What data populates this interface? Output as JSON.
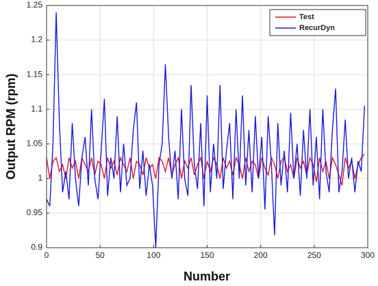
{
  "chart_data": {
    "type": "line",
    "xlabel": "Number",
    "ylabel": "Output RPM (rpm)",
    "x": [
      0,
      3,
      6,
      9,
      12,
      15,
      18,
      21,
      24,
      27,
      30,
      33,
      36,
      39,
      42,
      45,
      48,
      51,
      54,
      57,
      60,
      63,
      66,
      69,
      72,
      75,
      78,
      81,
      84,
      87,
      90,
      93,
      96,
      99,
      102,
      105,
      108,
      111,
      114,
      117,
      120,
      123,
      126,
      129,
      132,
      135,
      138,
      141,
      144,
      147,
      150,
      153,
      156,
      159,
      162,
      165,
      168,
      171,
      174,
      177,
      180,
      183,
      186,
      189,
      192,
      195,
      198,
      201,
      204,
      207,
      210,
      213,
      216,
      219,
      222,
      225,
      228,
      231,
      234,
      237,
      240,
      243,
      246,
      249,
      252,
      255,
      258,
      261,
      264,
      267,
      270,
      273,
      276,
      279,
      282,
      285,
      288,
      291,
      294,
      297
    ],
    "series": [
      {
        "name": "Test",
        "color": "#e8141c",
        "values": [
          1.03,
          1.0,
          1.025,
          1.03,
          1.01,
          1.02,
          1.0,
          1.03,
          1.015,
          1.025,
          1.0,
          1.03,
          1.02,
          1.01,
          1.03,
          1.005,
          1.025,
          1.02,
          1.0,
          1.03,
          1.015,
          1.025,
          1.005,
          1.03,
          1.02,
          1.01,
          1.03,
          1.0,
          1.025,
          1.02,
          1.005,
          1.03,
          1.015,
          1.02,
          1.0,
          1.03,
          1.025,
          1.01,
          1.03,
          1.005,
          1.02,
          1.03,
          1.0,
          1.025,
          1.015,
          1.03,
          1.005,
          1.02,
          1.03,
          1.0,
          1.025,
          1.01,
          1.03,
          1.02,
          1.0,
          1.03,
          1.015,
          1.025,
          1.005,
          1.03,
          1.02,
          1.0,
          1.03,
          1.01,
          1.025,
          1.02,
          1.0,
          1.03,
          1.015,
          1.005,
          1.03,
          1.02,
          1.0,
          1.025,
          1.03,
          1.01,
          1.02,
          1.0,
          1.03,
          1.015,
          1.025,
          1.005,
          1.03,
          1.02,
          0.995,
          1.03,
          1.01,
          1.025,
          1.0,
          1.03,
          1.02,
          1.005,
          0.99,
          1.03,
          1.015,
          1.025,
          1.0,
          1.02,
          1.03,
          1.035
        ]
      },
      {
        "name": "RecurDyn",
        "color": "#1a1adc",
        "values": [
          0.97,
          0.96,
          1.05,
          1.24,
          1.08,
          0.98,
          1.01,
          0.97,
          1.08,
          1.0,
          0.96,
          1.03,
          1.06,
          0.99,
          1.1,
          1.0,
          0.97,
          1.04,
          1.115,
          0.975,
          1.03,
          1.0,
          1.09,
          0.98,
          1.05,
          0.99,
          1.0,
          1.07,
          1.11,
          0.985,
          1.04,
          0.975,
          1.02,
          0.99,
          0.9,
          1.02,
          1.05,
          1.165,
          1.06,
          1.0,
          1.04,
          0.97,
          1.1,
          1.0,
          0.975,
          1.135,
          1.02,
          0.985,
          1.08,
          0.96,
          1.12,
          0.98,
          1.05,
          1.0,
          1.135,
          0.985,
          1.04,
          1.08,
          0.97,
          1.1,
          1.0,
          1.12,
          0.99,
          1.07,
          0.98,
          1.09,
          1.0,
          1.06,
          0.955,
          1.09,
          1.02,
          0.918,
          1.08,
          0.99,
          1.04,
          0.98,
          1.095,
          1.0,
          1.05,
          0.975,
          1.07,
          1.0,
          1.1,
          0.99,
          1.06,
          0.97,
          1.1,
          1.01,
          0.98,
          1.07,
          1.13,
          0.98,
          1.01,
          1.085,
          1.0,
          1.03,
          0.98,
          1.025,
          1.01,
          1.105
        ]
      }
    ],
    "xlim": [
      0,
      300
    ],
    "xticks": [
      0,
      50,
      100,
      150,
      200,
      250,
      300
    ],
    "ylim": [
      0.9,
      1.25
    ],
    "yticks": [
      0.9,
      0.95,
      1,
      1.05,
      1.1,
      1.15,
      1.2,
      1.25
    ],
    "grid": true,
    "legend": "upper right"
  }
}
